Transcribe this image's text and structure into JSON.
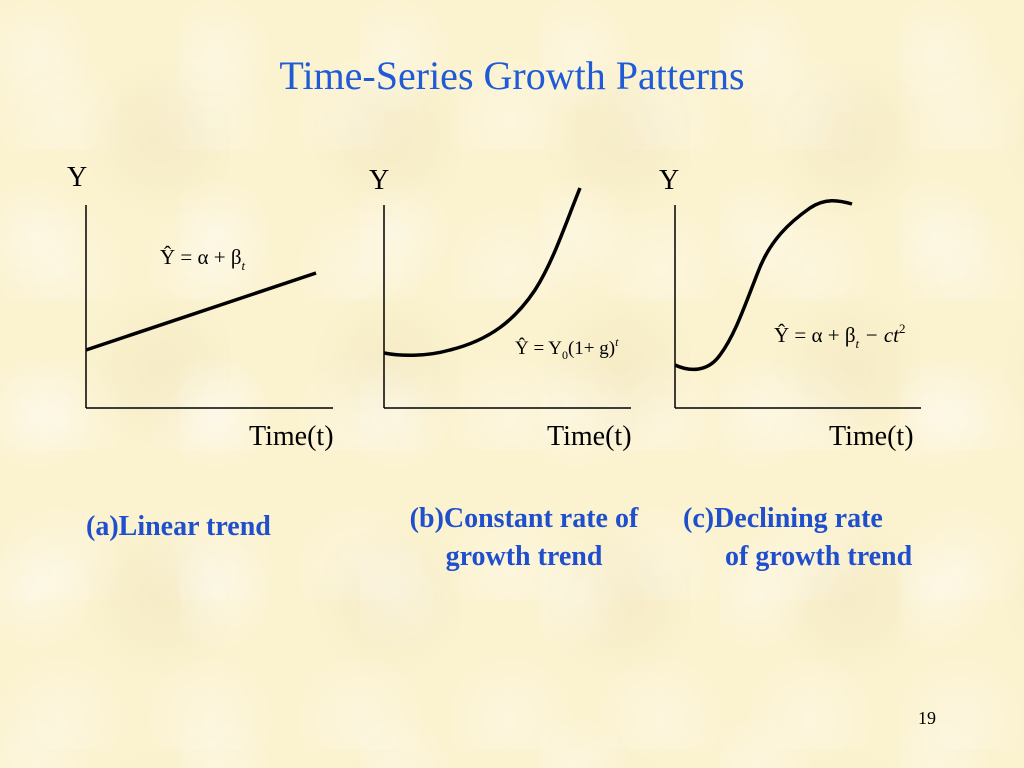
{
  "slide": {
    "title": "Time-Series Growth Patterns",
    "page_number": "19"
  },
  "panels": [
    {
      "id": "a",
      "y_label": "Y",
      "x_label": "Time(t)",
      "equation": {
        "lhs": "Ŷ = α + β",
        "sub": "t"
      },
      "caption_lines": [
        "(a)Linear trend"
      ]
    },
    {
      "id": "b",
      "y_label": "Y",
      "x_label": "Time(t)",
      "equation": {
        "lhs": "Ŷ = Y",
        "sub": "0",
        "mid": "(1+ g)",
        "sup": "t"
      },
      "caption_lines": [
        "(b)Constant rate of",
        "growth trend"
      ]
    },
    {
      "id": "c",
      "y_label": "Y",
      "x_label": "Time(t)",
      "equation": {
        "lhs": "Ŷ = α + β",
        "sub": "t",
        "mid": " − ct",
        "sup": "2"
      },
      "caption_lines": [
        "(c)Declining rate",
        "of growth trend"
      ]
    }
  ],
  "colors": {
    "title": "#1f5bd6",
    "caption": "#1f4fcc",
    "curve": "#000000"
  }
}
